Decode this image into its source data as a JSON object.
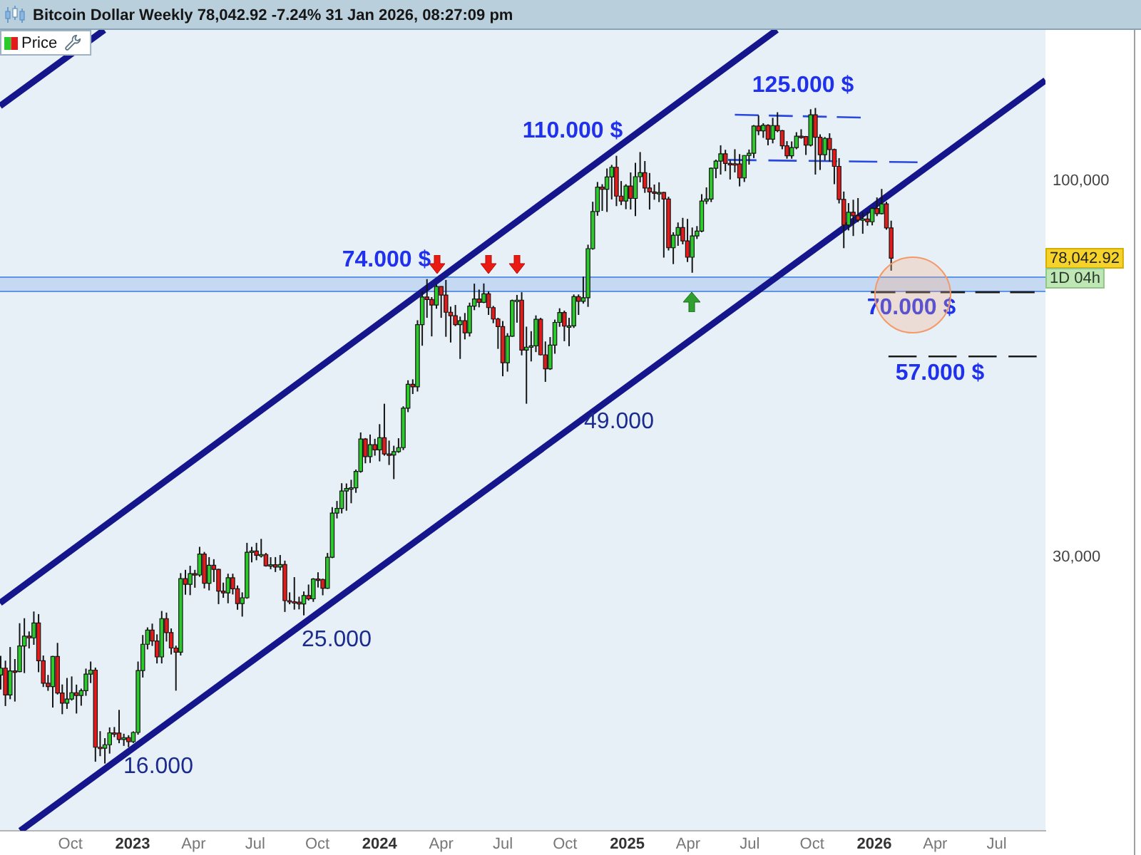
{
  "chart_data": {
    "type": "candlestick",
    "title": "Bitcoin Dollar Weekly 78,042.92 -7.24% 31 Jan 2026, 08:27:09 pm",
    "xlim": [
      "2022-06-19",
      "2026-09-11"
    ],
    "xticks": [
      {
        "value": "2022-10-01",
        "label": "Oct"
      },
      {
        "value": "2023-01-01",
        "label": "2023"
      },
      {
        "value": "2023-04-01",
        "label": "Apr"
      },
      {
        "value": "2023-07-01",
        "label": "Jul"
      },
      {
        "value": "2023-10-01",
        "label": "Oct"
      },
      {
        "value": "2024-01-01",
        "label": "2024"
      },
      {
        "value": "2024-04-01",
        "label": "Apr"
      },
      {
        "value": "2024-07-01",
        "label": "Jul"
      },
      {
        "value": "2024-10-01",
        "label": "Oct"
      },
      {
        "value": "2025-01-01",
        "label": "2025"
      },
      {
        "value": "2025-04-01",
        "label": "Apr"
      },
      {
        "value": "2025-07-01",
        "label": "Jul"
      },
      {
        "value": "2025-10-01",
        "label": "Oct"
      },
      {
        "value": "2026-01-01",
        "label": "2026"
      },
      {
        "value": "2026-04-01",
        "label": "Apr"
      },
      {
        "value": "2026-07-01",
        "label": "Jul"
      }
    ],
    "ylim": [
      12500,
      162000
    ],
    "yticks": [
      {
        "value": 100000,
        "label": "100,000"
      },
      {
        "value": 30000,
        "label": "30,000"
      }
    ],
    "log": "y",
    "legend": "top left",
    "bands": [
      {
        "axis": "y",
        "from": 70500,
        "to": 73500,
        "color": "#5f95e6"
      }
    ],
    "annotations": [
      "125.000 $",
      "110.000 $",
      "74.000 $",
      "70.000 $",
      "57.000 $",
      "49.000",
      "25.000",
      "16.000",
      "78,042.92",
      "1D 04h"
    ],
    "series": [
      {
        "name": "Price",
        "x": [
          "2022-06-20",
          "2022-06-27",
          "2022-07-04",
          "2022-07-11",
          "2022-07-18",
          "2022-07-25",
          "2022-08-01",
          "2022-08-08",
          "2022-08-15",
          "2022-08-22",
          "2022-08-29",
          "2022-09-05",
          "2022-09-12",
          "2022-09-19",
          "2022-09-26",
          "2022-10-03",
          "2022-10-10",
          "2022-10-17",
          "2022-10-24",
          "2022-10-31",
          "2022-11-07",
          "2022-11-14",
          "2022-11-21",
          "2022-11-28",
          "2022-12-05",
          "2022-12-12",
          "2022-12-19",
          "2022-12-26",
          "2023-01-02",
          "2023-01-09",
          "2023-01-16",
          "2023-01-23",
          "2023-01-30",
          "2023-02-06",
          "2023-02-13",
          "2023-02-20",
          "2023-02-27",
          "2023-03-06",
          "2023-03-13",
          "2023-03-20",
          "2023-03-27",
          "2023-04-03",
          "2023-04-10",
          "2023-04-17",
          "2023-04-24",
          "2023-05-01",
          "2023-05-08",
          "2023-05-15",
          "2023-05-22",
          "2023-05-29",
          "2023-06-05",
          "2023-06-12",
          "2023-06-19",
          "2023-06-26",
          "2023-07-03",
          "2023-07-10",
          "2023-07-17",
          "2023-07-24",
          "2023-07-31",
          "2023-08-07",
          "2023-08-14",
          "2023-08-21",
          "2023-08-28",
          "2023-09-04",
          "2023-09-11",
          "2023-09-18",
          "2023-09-25",
          "2023-10-02",
          "2023-10-09",
          "2023-10-16",
          "2023-10-23",
          "2023-10-30",
          "2023-11-06",
          "2023-11-13",
          "2023-11-20",
          "2023-11-27",
          "2023-12-04",
          "2023-12-11",
          "2023-12-18",
          "2023-12-25",
          "2024-01-01",
          "2024-01-08",
          "2024-01-15",
          "2024-01-22",
          "2024-01-29",
          "2024-02-05",
          "2024-02-12",
          "2024-02-19",
          "2024-02-26",
          "2024-03-04",
          "2024-03-11",
          "2024-03-18",
          "2024-03-25",
          "2024-04-01",
          "2024-04-08",
          "2024-04-15",
          "2024-04-22",
          "2024-04-29",
          "2024-05-06",
          "2024-05-13",
          "2024-05-20",
          "2024-05-27",
          "2024-06-03",
          "2024-06-10",
          "2024-06-17",
          "2024-06-24",
          "2024-07-01",
          "2024-07-08",
          "2024-07-15",
          "2024-07-22",
          "2024-07-29",
          "2024-08-05",
          "2024-08-12",
          "2024-08-19",
          "2024-08-26",
          "2024-09-02",
          "2024-09-09",
          "2024-09-16",
          "2024-09-23",
          "2024-09-30",
          "2024-10-07",
          "2024-10-14",
          "2024-10-21",
          "2024-10-28",
          "2024-11-04",
          "2024-11-11",
          "2024-11-18",
          "2024-11-25",
          "2024-12-02",
          "2024-12-09",
          "2024-12-16",
          "2024-12-23",
          "2024-12-30",
          "2025-01-06",
          "2025-01-13",
          "2025-01-20",
          "2025-01-27",
          "2025-02-03",
          "2025-02-10",
          "2025-02-17",
          "2025-02-24",
          "2025-03-03",
          "2025-03-10",
          "2025-03-17",
          "2025-03-24",
          "2025-03-31",
          "2025-04-07",
          "2025-04-14",
          "2025-04-21",
          "2025-04-28",
          "2025-05-05",
          "2025-05-12",
          "2025-05-19",
          "2025-05-26",
          "2025-06-02",
          "2025-06-09",
          "2025-06-16",
          "2025-06-23",
          "2025-06-30",
          "2025-07-07",
          "2025-07-14",
          "2025-07-21",
          "2025-07-28",
          "2025-08-04",
          "2025-08-11",
          "2025-08-18",
          "2025-08-25",
          "2025-09-01",
          "2025-09-08",
          "2025-09-15",
          "2025-09-22",
          "2025-09-29",
          "2025-10-06",
          "2025-10-13",
          "2025-10-20",
          "2025-10-27",
          "2025-11-03",
          "2025-11-10",
          "2025-11-17",
          "2025-11-24",
          "2025-12-01",
          "2025-12-08",
          "2025-12-15",
          "2025-12-22",
          "2025-12-29",
          "2026-01-05",
          "2026-01-12",
          "2026-01-19",
          "2026-01-26"
        ],
        "ohlc": [
          [
            20570,
            21870,
            19640,
            21030
          ],
          [
            21030,
            21540,
            18630,
            19300
          ],
          [
            19300,
            22500,
            19040,
            20850
          ],
          [
            20850,
            21650,
            18900,
            20800
          ],
          [
            20800,
            24280,
            20760,
            22580
          ],
          [
            22580,
            24670,
            20700,
            23300
          ],
          [
            23300,
            23650,
            22400,
            23170
          ],
          [
            23170,
            25210,
            22660,
            24300
          ],
          [
            24300,
            25000,
            20760,
            21530
          ],
          [
            21530,
            21900,
            19800,
            20040
          ],
          [
            20040,
            20580,
            19560,
            19830
          ],
          [
            19830,
            21870,
            18540,
            21830
          ],
          [
            21830,
            22800,
            19330,
            19420
          ],
          [
            19420,
            19960,
            18150,
            18800
          ],
          [
            18800,
            20380,
            18460,
            19050
          ],
          [
            19050,
            20480,
            18960,
            19440
          ],
          [
            19440,
            19950,
            18190,
            19270
          ],
          [
            19270,
            19700,
            18650,
            19570
          ],
          [
            19570,
            21000,
            19250,
            20630
          ],
          [
            20630,
            21480,
            20050,
            20900
          ],
          [
            20900,
            21070,
            15590,
            16330
          ],
          [
            16330,
            17190,
            15870,
            16280
          ],
          [
            16280,
            16810,
            15500,
            16460
          ],
          [
            16460,
            17400,
            16000,
            17100
          ],
          [
            17100,
            17420,
            16870,
            17090
          ],
          [
            17090,
            18400,
            16540,
            16740
          ],
          [
            16740,
            17050,
            16400,
            16840
          ],
          [
            16840,
            16970,
            16330,
            16620
          ],
          [
            16620,
            17180,
            16550,
            17120
          ],
          [
            17120,
            21480,
            17000,
            20870
          ],
          [
            20870,
            23380,
            20410,
            22700
          ],
          [
            22700,
            23960,
            22330,
            23750
          ],
          [
            23750,
            24250,
            22580,
            22940
          ],
          [
            22940,
            23430,
            21350,
            21800
          ],
          [
            21800,
            25250,
            21350,
            24640
          ],
          [
            24640,
            25120,
            22900,
            23560
          ],
          [
            23560,
            23880,
            21970,
            22430
          ],
          [
            22430,
            22600,
            19570,
            22130
          ],
          [
            22130,
            28500,
            21900,
            28000
          ],
          [
            28000,
            28800,
            26600,
            27500
          ],
          [
            27500,
            29180,
            26560,
            28450
          ],
          [
            28450,
            28800,
            27200,
            28330
          ],
          [
            28330,
            31000,
            28170,
            30300
          ],
          [
            30300,
            30500,
            27140,
            27590
          ],
          [
            27590,
            30000,
            26970,
            29230
          ],
          [
            29230,
            29800,
            27700,
            28850
          ],
          [
            28850,
            28900,
            25810,
            26910
          ],
          [
            26910,
            27650,
            26340,
            26750
          ],
          [
            26750,
            28450,
            25880,
            28080
          ],
          [
            28080,
            28450,
            26620,
            27110
          ],
          [
            27110,
            27400,
            25350,
            25850
          ],
          [
            25850,
            26800,
            24800,
            26340
          ],
          [
            26340,
            31400,
            26260,
            30470
          ],
          [
            30470,
            31000,
            29500,
            30590
          ],
          [
            30590,
            31400,
            29700,
            30170
          ],
          [
            30170,
            31800,
            29960,
            30250
          ],
          [
            30250,
            30400,
            29100,
            29180
          ],
          [
            29180,
            29990,
            28860,
            29280
          ],
          [
            29280,
            30000,
            28600,
            29060
          ],
          [
            29060,
            30200,
            28750,
            29290
          ],
          [
            29290,
            29660,
            25170,
            26100
          ],
          [
            26100,
            26800,
            25800,
            26010
          ],
          [
            26010,
            28140,
            25360,
            25970
          ],
          [
            25970,
            26430,
            25380,
            25830
          ],
          [
            25830,
            26880,
            24900,
            26530
          ],
          [
            26530,
            27480,
            26110,
            26250
          ],
          [
            26250,
            28050,
            26000,
            27970
          ],
          [
            27970,
            28580,
            27220,
            27930
          ],
          [
            27930,
            28000,
            26550,
            27150
          ],
          [
            27150,
            30400,
            27100,
            29990
          ],
          [
            29990,
            35200,
            29900,
            34530
          ],
          [
            34530,
            35900,
            33950,
            35050
          ],
          [
            35050,
            38000,
            34500,
            37060
          ],
          [
            37060,
            37970,
            34800,
            37360
          ],
          [
            37360,
            38420,
            35640,
            37450
          ],
          [
            37450,
            39700,
            36850,
            39470
          ],
          [
            39470,
            44700,
            39300,
            43780
          ],
          [
            43780,
            43900,
            40500,
            41370
          ],
          [
            41370,
            44400,
            40550,
            42990
          ],
          [
            42990,
            43800,
            41500,
            42270
          ],
          [
            42270,
            45900,
            40750,
            43950
          ],
          [
            43950,
            49000,
            41500,
            41730
          ],
          [
            41730,
            43550,
            40280,
            41580
          ],
          [
            41580,
            42840,
            38500,
            42030
          ],
          [
            42030,
            43880,
            41880,
            42580
          ],
          [
            42580,
            48600,
            42250,
            48300
          ],
          [
            48300,
            52820,
            47700,
            52140
          ],
          [
            52140,
            52980,
            50550,
            51730
          ],
          [
            51730,
            64000,
            50950,
            63110
          ],
          [
            63110,
            70170,
            59000,
            68950
          ],
          [
            68950,
            73000,
            64500,
            68400
          ],
          [
            68400,
            68920,
            60780,
            67200
          ],
          [
            67200,
            71770,
            66400,
            71300
          ],
          [
            71300,
            71340,
            64500,
            69360
          ],
          [
            69360,
            72800,
            60700,
            65660
          ],
          [
            65660,
            66860,
            59600,
            64940
          ],
          [
            64940,
            67200,
            62800,
            63110
          ],
          [
            63110,
            64750,
            56550,
            63890
          ],
          [
            63890,
            65500,
            60200,
            61480
          ],
          [
            61480,
            67700,
            60750,
            66950
          ],
          [
            66950,
            71950,
            66100,
            68500
          ],
          [
            68500,
            70600,
            66700,
            67760
          ],
          [
            67760,
            71990,
            67600,
            69650
          ],
          [
            69650,
            70200,
            65100,
            66640
          ],
          [
            66640,
            67000,
            63400,
            64250
          ],
          [
            64250,
            64500,
            58400,
            62700
          ],
          [
            62700,
            63840,
            53500,
            55860
          ],
          [
            55860,
            61400,
            54300,
            60800
          ],
          [
            60800,
            68370,
            60700,
            68160
          ],
          [
            68160,
            69400,
            63500,
            68250
          ],
          [
            68250,
            70000,
            57200,
            58160
          ],
          [
            58160,
            62700,
            49000,
            58720
          ],
          [
            58720,
            61800,
            56100,
            58960
          ],
          [
            58960,
            65000,
            57800,
            64200
          ],
          [
            64200,
            64500,
            57200,
            57300
          ],
          [
            57300,
            59800,
            52550,
            54800
          ],
          [
            54800,
            60650,
            54600,
            59100
          ],
          [
            59100,
            64130,
            57500,
            63560
          ],
          [
            63560,
            66500,
            62670,
            65600
          ],
          [
            65600,
            66000,
            59850,
            62800
          ],
          [
            62800,
            64500,
            58900,
            62850
          ],
          [
            62850,
            69500,
            62450,
            69000
          ],
          [
            69000,
            69500,
            65100,
            68000
          ],
          [
            68000,
            73600,
            67500,
            68770
          ],
          [
            68770,
            81500,
            66800,
            80470
          ],
          [
            80470,
            93500,
            80200,
            90600
          ],
          [
            90600,
            99600,
            89400,
            98000
          ],
          [
            98000,
            98900,
            90800,
            97300
          ],
          [
            97300,
            104000,
            90500,
            101200
          ],
          [
            101200,
            105200,
            94200,
            104400
          ],
          [
            104400,
            108300,
            92200,
            95200
          ],
          [
            95200,
            99900,
            92500,
            93700
          ],
          [
            93700,
            98900,
            91300,
            98300
          ],
          [
            98300,
            102700,
            91200,
            94500
          ],
          [
            94500,
            105900,
            89300,
            101300
          ],
          [
            101300,
            109600,
            99500,
            102600
          ],
          [
            102600,
            106500,
            96200,
            97700
          ],
          [
            97700,
            102500,
            91200,
            96500
          ],
          [
            96500,
            98800,
            94100,
            96200
          ],
          [
            96200,
            99500,
            93400,
            96300
          ],
          [
            96300,
            96500,
            78200,
            94300
          ],
          [
            94300,
            95000,
            80000,
            80700
          ],
          [
            80700,
            84800,
            76600,
            84000
          ],
          [
            84000,
            87500,
            81200,
            86100
          ],
          [
            86100,
            88800,
            81600,
            82500
          ],
          [
            82500,
            88500,
            77100,
            78300
          ],
          [
            78300,
            86100,
            74500,
            83800
          ],
          [
            83800,
            86500,
            83000,
            85100
          ],
          [
            85100,
            95800,
            84800,
            93700
          ],
          [
            93700,
            97900,
            92800,
            94300
          ],
          [
            94300,
            104300,
            93400,
            104100
          ],
          [
            104100,
            107000,
            100800,
            106500
          ],
          [
            106500,
            112000,
            102000,
            109000
          ],
          [
            109000,
            110400,
            103100,
            105700
          ],
          [
            105700,
            106800,
            100400,
            105600
          ],
          [
            105600,
            110600,
            102700,
            105500
          ],
          [
            105500,
            108900,
            98200,
            100900
          ],
          [
            100900,
            108500,
            99600,
            108400
          ],
          [
            108400,
            110500,
            105300,
            109200
          ],
          [
            109200,
            119500,
            107500,
            119100
          ],
          [
            119100,
            123200,
            115700,
            117300
          ],
          [
            117300,
            120200,
            114700,
            119400
          ],
          [
            119400,
            119800,
            112000,
            114200
          ],
          [
            114200,
            122300,
            112700,
            119300
          ],
          [
            119300,
            124500,
            116800,
            117400
          ],
          [
            117400,
            117600,
            110600,
            111800
          ],
          [
            111800,
            113500,
            107300,
            108300
          ],
          [
            108300,
            113400,
            107300,
            111200
          ],
          [
            111200,
            116800,
            110600,
            115300
          ],
          [
            115300,
            117900,
            114400,
            115200
          ],
          [
            115200,
            115400,
            108600,
            112100
          ],
          [
            112100,
            125700,
            111600,
            123500
          ],
          [
            123500,
            126200,
            102000,
            114900
          ],
          [
            114900,
            116000,
            103500,
            108700
          ],
          [
            108700,
            115000,
            106700,
            114500
          ],
          [
            114500,
            116400,
            106300,
            110500
          ],
          [
            110500,
            110800,
            98900,
            104700
          ],
          [
            104700,
            107500,
            93000,
            94200
          ],
          [
            94200,
            96600,
            80600,
            86800
          ],
          [
            86800,
            93100,
            85300,
            90400
          ],
          [
            90400,
            94100,
            83800,
            89400
          ],
          [
            89400,
            94600,
            87600,
            88200
          ],
          [
            88200,
            90400,
            84400,
            88500
          ],
          [
            88500,
            90600,
            86600,
            87700
          ],
          [
            87700,
            91800,
            86700,
            91500
          ],
          [
            91500,
            94800,
            89300,
            90000
          ],
          [
            90000,
            97400,
            89800,
            92850
          ],
          [
            92850,
            93500,
            85500,
            86000
          ],
          [
            86000,
            88000,
            75000,
            78042.92
          ]
        ],
        "colors": [
          "#2bcb2b",
          "#e31b1b",
          "#2bcb2b",
          "#e31b1b",
          "#2bcb2b",
          "#2bcb2b",
          "#e31b1b",
          "#2bcb2b",
          "#e31b1b",
          "#e31b1b",
          "#e31b1b",
          "#2bcb2b",
          "#e31b1b",
          "#e31b1b",
          "#2bcb2b",
          "#2bcb2b",
          "#e31b1b",
          "#2bcb2b",
          "#2bcb2b",
          "#2bcb2b",
          "#e31b1b",
          "#e31b1b",
          "#2bcb2b",
          "#2bcb2b",
          "#e31b1b",
          "#e31b1b",
          "#2bcb2b",
          "#e31b1b",
          "#2bcb2b",
          "#2bcb2b",
          "#2bcb2b",
          "#2bcb2b",
          "#e31b1b",
          "#e31b1b",
          "#2bcb2b",
          "#e31b1b",
          "#e31b1b",
          "#e31b1b",
          "#2bcb2b",
          "#e31b1b",
          "#2bcb2b",
          "#e31b1b",
          "#2bcb2b",
          "#e31b1b",
          "#2bcb2b",
          "#e31b1b",
          "#e31b1b",
          "#e31b1b",
          "#2bcb2b",
          "#e31b1b",
          "#e31b1b",
          "#2bcb2b",
          "#2bcb2b",
          "#2bcb2b",
          "#e31b1b",
          "#2bcb2b",
          "#e31b1b",
          "#2bcb2b",
          "#e31b1b",
          "#2bcb2b",
          "#e31b1b",
          "#e31b1b",
          "#e31b1b",
          "#e31b1b",
          "#2bcb2b",
          "#e31b1b",
          "#2bcb2b",
          "#e31b1b",
          "#e31b1b",
          "#2bcb2b",
          "#2bcb2b",
          "#2bcb2b",
          "#2bcb2b",
          "#2bcb2b",
          "#2bcb2b",
          "#2bcb2b",
          "#2bcb2b",
          "#e31b1b",
          "#2bcb2b",
          "#e31b1b",
          "#2bcb2b",
          "#e31b1b",
          "#e31b1b",
          "#2bcb2b",
          "#2bcb2b",
          "#2bcb2b",
          "#2bcb2b",
          "#e31b1b",
          "#2bcb2b",
          "#2bcb2b",
          "#e31b1b",
          "#e31b1b",
          "#2bcb2b",
          "#e31b1b",
          "#e31b1b",
          "#e31b1b",
          "#e31b1b",
          "#2bcb2b",
          "#e31b1b",
          "#2bcb2b",
          "#2bcb2b",
          "#e31b1b",
          "#2bcb2b",
          "#e31b1b",
          "#e31b1b",
          "#e31b1b",
          "#e31b1b",
          "#2bcb2b",
          "#2bcb2b",
          "#2bcb2b",
          "#e31b1b",
          "#2bcb2b",
          "#2bcb2b",
          "#2bcb2b",
          "#e31b1b",
          "#e31b1b",
          "#2bcb2b",
          "#2bcb2b",
          "#2bcb2b",
          "#e31b1b",
          "#2bcb2b",
          "#2bcb2b",
          "#e31b1b",
          "#2bcb2b",
          "#2bcb2b",
          "#2bcb2b",
          "#2bcb2b",
          "#e31b1b",
          "#2bcb2b",
          "#2bcb2b",
          "#e31b1b",
          "#e31b1b",
          "#2bcb2b",
          "#e31b1b",
          "#2bcb2b",
          "#2bcb2b",
          "#e31b1b",
          "#e31b1b",
          "#e31b1b",
          "#2bcb2b",
          "#e31b1b",
          "#e31b1b",
          "#2bcb2b",
          "#2bcb2b",
          "#e31b1b",
          "#e31b1b",
          "#2bcb2b",
          "#2bcb2b",
          "#2bcb2b",
          "#2bcb2b",
          "#2bcb2b",
          "#2bcb2b",
          "#2bcb2b",
          "#e31b1b",
          "#e31b1b",
          "#e31b1b",
          "#e31b1b",
          "#2bcb2b",
          "#2bcb2b",
          "#2bcb2b",
          "#e31b1b",
          "#2bcb2b",
          "#e31b1b",
          "#2bcb2b",
          "#e31b1b",
          "#e31b1b",
          "#e31b1b",
          "#2bcb2b",
          "#2bcb2b",
          "#e31b1b",
          "#e31b1b",
          "#2bcb2b",
          "#e31b1b",
          "#e31b1b",
          "#2bcb2b",
          "#e31b1b",
          "#e31b1b",
          "#e31b1b",
          "#e31b1b",
          "#2bcb2b",
          "#e31b1b",
          "#e31b1b",
          "#2bcb2b",
          "#e31b1b",
          "#2bcb2b",
          "#e31b1b",
          "#2bcb2b",
          "#e31b1b",
          "#e31b1b"
        ]
      },
      {
        "type": "line",
        "color": "#15158c",
        "x": [
          "2022-06-19",
          "2022-11-20"
        ],
        "values": [
          127000,
          162000
        ]
      },
      {
        "type": "line",
        "color": "#15158c",
        "x": [
          "2022-06-19",
          "2025-08-10"
        ],
        "values": [
          25900,
          162000
        ]
      },
      {
        "type": "line",
        "color": "#15158c",
        "x": [
          "2022-07-19",
          "2026-09-11"
        ],
        "values": [
          12500,
          137900
        ]
      },
      {
        "type": "line",
        "color": "#2848e0",
        "line_style": "dashed",
        "x": [
          "2025-06-09",
          "2025-12-12"
        ],
        "values": [
          123500,
          122400
        ]
      },
      {
        "type": "line",
        "color": "#2848e0",
        "line_style": "dashed",
        "x": [
          "2025-05-30",
          "2026-03-06"
        ],
        "values": [
          106900,
          106100
        ]
      },
      {
        "type": "line",
        "color": "#1a1a1a",
        "line_style": "dashed",
        "x": [
          "2025-12-27",
          "2026-08-26"
        ],
        "values": [
          70000,
          70000
        ]
      },
      {
        "type": "line",
        "color": "#1a1a1a",
        "line_style": "dashed",
        "x": [
          "2026-01-22",
          "2026-08-29"
        ],
        "values": [
          57000,
          57000
        ]
      }
    ]
  }
}
